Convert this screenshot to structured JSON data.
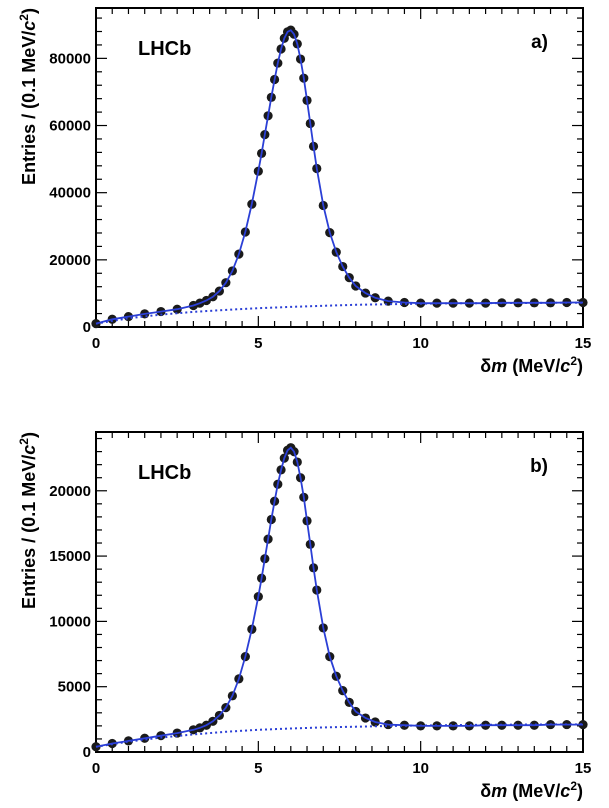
{
  "chart_data": [
    {
      "type": "scatter",
      "panel_label": "a)",
      "experiment_label": "LHCb",
      "xlabel": "δm (MeV/c²)",
      "ylabel": "Entries / (0.1 MeV/c²)",
      "xlim": [
        0,
        15
      ],
      "ylim": [
        0,
        95000
      ],
      "xticks": [
        0,
        5,
        10,
        15
      ],
      "xtick_labels": [
        "0",
        "5",
        "10",
        "15"
      ],
      "yticks": [
        0,
        20000,
        40000,
        60000,
        80000
      ],
      "ytick_labels": [
        "0",
        "20000",
        "40000",
        "60000",
        "80000"
      ],
      "grid": false,
      "series": [
        {
          "role": "data-points",
          "x": [
            0.0,
            0.5,
            1.0,
            1.5,
            2.0,
            2.5,
            3.0,
            3.2,
            3.4,
            3.6,
            3.8,
            4.0,
            4.2,
            4.4,
            4.6,
            4.8,
            5.0,
            5.1,
            5.2,
            5.3,
            5.4,
            5.5,
            5.6,
            5.7,
            5.8,
            5.9,
            6.0,
            6.1,
            6.2,
            6.3,
            6.4,
            6.5,
            6.6,
            6.7,
            6.8,
            7.0,
            7.2,
            7.4,
            7.6,
            7.8,
            8.0,
            8.3,
            8.6,
            9.0,
            9.5,
            10.0,
            10.5,
            11.0,
            11.5,
            12.0,
            12.5,
            13.0,
            13.5,
            14.0,
            14.5,
            15.0
          ],
          "y": [
            1000,
            2300,
            3100,
            3900,
            4600,
            5300,
            6400,
            7100,
            7900,
            9000,
            10700,
            13200,
            16700,
            21700,
            28300,
            36600,
            46400,
            51700,
            57300,
            62900,
            68400,
            73700,
            78600,
            82800,
            86000,
            87900,
            88400,
            87200,
            84300,
            79800,
            74100,
            67500,
            60600,
            53800,
            47200,
            36200,
            28100,
            22300,
            18000,
            14700,
            12200,
            10100,
            8700,
            7700,
            7300,
            7100,
            7100,
            7100,
            7100,
            7100,
            7200,
            7200,
            7200,
            7200,
            7300,
            7300
          ],
          "color": "#1a1a1a"
        },
        {
          "role": "total-fit",
          "x": [
            0.0,
            0.5,
            1.0,
            1.5,
            2.0,
            2.5,
            3.0,
            3.2,
            3.4,
            3.6,
            3.8,
            4.0,
            4.2,
            4.4,
            4.6,
            4.8,
            5.0,
            5.1,
            5.2,
            5.3,
            5.4,
            5.5,
            5.6,
            5.7,
            5.8,
            5.9,
            6.0,
            6.1,
            6.2,
            6.3,
            6.4,
            6.5,
            6.6,
            6.7,
            6.8,
            7.0,
            7.2,
            7.4,
            7.6,
            7.8,
            8.0,
            8.3,
            8.6,
            9.0,
            9.5,
            10.0,
            10.5,
            11.0,
            11.5,
            12.0,
            12.5,
            13.0,
            13.5,
            14.0,
            14.5,
            15.0
          ],
          "y": [
            1000,
            2300,
            3100,
            3900,
            4600,
            5300,
            6400,
            7100,
            7900,
            9000,
            10700,
            13200,
            16700,
            21700,
            28300,
            36600,
            46400,
            51700,
            57300,
            62900,
            68400,
            73700,
            78600,
            82800,
            86000,
            87900,
            88400,
            87200,
            84300,
            79800,
            74100,
            67500,
            60600,
            53800,
            47200,
            36200,
            28100,
            22300,
            18000,
            14700,
            12200,
            10100,
            8700,
            7700,
            7300,
            7100,
            7100,
            7100,
            7100,
            7100,
            7200,
            7200,
            7200,
            7200,
            7300,
            7300
          ],
          "color": "#2b3fd6",
          "style": "solid"
        },
        {
          "role": "background-fit",
          "x": [
            0,
            1,
            2,
            3,
            4,
            5,
            6,
            7,
            8,
            9,
            10,
            11,
            12,
            13,
            14,
            15
          ],
          "y": [
            1000,
            2600,
            3700,
            4500,
            5100,
            5600,
            6000,
            6300,
            6600,
            6800,
            6950,
            7050,
            7100,
            7150,
            7200,
            7250
          ],
          "color": "#2b3fd6",
          "style": "dotted"
        }
      ]
    },
    {
      "type": "scatter",
      "panel_label": "b)",
      "experiment_label": "LHCb",
      "xlabel": "δm (MeV/c²)",
      "ylabel": "Entries / (0.1 MeV/c²)",
      "xlim": [
        0,
        15
      ],
      "ylim": [
        0,
        24500
      ],
      "xticks": [
        0,
        5,
        10,
        15
      ],
      "xtick_labels": [
        "0",
        "5",
        "10",
        "15"
      ],
      "yticks": [
        0,
        5000,
        10000,
        15000,
        20000
      ],
      "ytick_labels": [
        "0",
        "5000",
        "10000",
        "15000",
        "20000"
      ],
      "grid": false,
      "series": [
        {
          "role": "data-points",
          "x": [
            0.0,
            0.5,
            1.0,
            1.5,
            2.0,
            2.5,
            3.0,
            3.2,
            3.4,
            3.6,
            3.8,
            4.0,
            4.2,
            4.4,
            4.6,
            4.8,
            5.0,
            5.1,
            5.2,
            5.3,
            5.4,
            5.5,
            5.6,
            5.7,
            5.8,
            5.9,
            6.0,
            6.1,
            6.2,
            6.3,
            6.4,
            6.5,
            6.6,
            6.7,
            6.8,
            7.0,
            7.2,
            7.4,
            7.6,
            7.8,
            8.0,
            8.3,
            8.6,
            9.0,
            9.5,
            10.0,
            10.5,
            11.0,
            11.5,
            12.0,
            12.5,
            13.0,
            13.5,
            14.0,
            14.5,
            15.0
          ],
          "y": [
            400,
            650,
            850,
            1050,
            1250,
            1450,
            1700,
            1850,
            2050,
            2350,
            2800,
            3400,
            4300,
            5600,
            7300,
            9400,
            11900,
            13300,
            14800,
            16300,
            17800,
            19200,
            20500,
            21600,
            22500,
            23100,
            23300,
            23000,
            22200,
            21000,
            19500,
            17700,
            15900,
            14100,
            12400,
            9500,
            7300,
            5800,
            4700,
            3800,
            3100,
            2600,
            2300,
            2100,
            2050,
            2000,
            2000,
            2000,
            2000,
            2050,
            2050,
            2050,
            2050,
            2100,
            2100,
            2100
          ],
          "color": "#1a1a1a"
        },
        {
          "role": "total-fit",
          "x": [
            0.0,
            0.5,
            1.0,
            1.5,
            2.0,
            2.5,
            3.0,
            3.2,
            3.4,
            3.6,
            3.8,
            4.0,
            4.2,
            4.4,
            4.6,
            4.8,
            5.0,
            5.1,
            5.2,
            5.3,
            5.4,
            5.5,
            5.6,
            5.7,
            5.8,
            5.9,
            6.0,
            6.1,
            6.2,
            6.3,
            6.4,
            6.5,
            6.6,
            6.7,
            6.8,
            7.0,
            7.2,
            7.4,
            7.6,
            7.8,
            8.0,
            8.3,
            8.6,
            9.0,
            9.5,
            10.0,
            10.5,
            11.0,
            11.5,
            12.0,
            12.5,
            13.0,
            13.5,
            14.0,
            14.5,
            15.0
          ],
          "y": [
            400,
            650,
            850,
            1050,
            1250,
            1450,
            1700,
            1850,
            2050,
            2350,
            2800,
            3400,
            4300,
            5600,
            7300,
            9400,
            11900,
            13300,
            14800,
            16300,
            17800,
            19200,
            20500,
            21600,
            22500,
            23100,
            23300,
            23000,
            22200,
            21000,
            19500,
            17700,
            15900,
            14100,
            12400,
            9500,
            7300,
            5800,
            4700,
            3800,
            3100,
            2600,
            2300,
            2100,
            2050,
            2000,
            2000,
            2000,
            2000,
            2050,
            2050,
            2050,
            2050,
            2100,
            2100,
            2100
          ],
          "color": "#2b3fd6",
          "style": "solid"
        },
        {
          "role": "background-fit",
          "x": [
            0,
            1,
            2,
            3,
            4,
            5,
            6,
            7,
            8,
            9,
            10,
            11,
            12,
            13,
            14,
            15
          ],
          "y": [
            400,
            800,
            1100,
            1350,
            1550,
            1700,
            1800,
            1880,
            1940,
            1990,
            2030,
            2060,
            2080,
            2100,
            2110,
            2120
          ],
          "color": "#2b3fd6",
          "style": "dotted"
        }
      ]
    }
  ]
}
